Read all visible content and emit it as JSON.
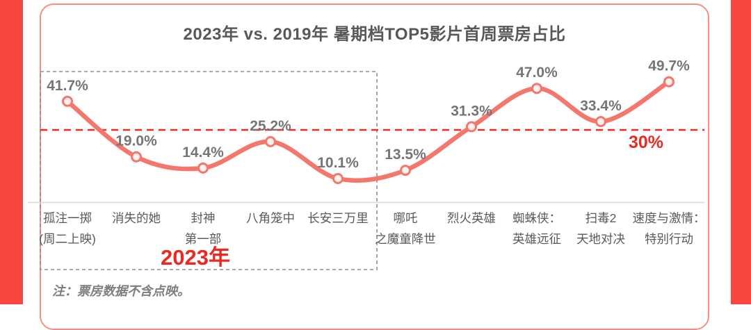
{
  "footnote": {
    "text": "注：票房数据不含点映。"
  },
  "colors": {
    "accent_bar": "#f94540",
    "card_border": "#fa8d82",
    "series_line": "#f4776c",
    "marker_fill": "#fdf1ef",
    "reference_red": "#ee2b26",
    "highlight_red": "#ea2a21",
    "value_label": "#757575",
    "category_label": "#5a5a5a",
    "title_text": "#58585a",
    "footnote_text": "#7d7d7d",
    "box_dash": "#8f8f8f",
    "axis_line": "#d9d9d9"
  },
  "chart_data": {
    "type": "line",
    "title": "2023年 vs. 2019年 暑期档TOP5影片首周票房占比",
    "categories": [
      "孤注一掷(周二上映)",
      "消失的她",
      "封神第一部",
      "八角笼中",
      "长安三万里",
      "哪吒之魔童降世",
      "烈火英雄",
      "蜘蛛侠：英雄远征",
      "扫毒2天地对决",
      "速度与激情：特别行动"
    ],
    "category_lines": [
      [
        "孤注一掷",
        "(周二上映)"
      ],
      [
        "消失的她"
      ],
      [
        "封神",
        "第一部"
      ],
      [
        "八角笼中"
      ],
      [
        "长安三万里"
      ],
      [
        "哪吒",
        "之魔童降世"
      ],
      [
        "烈火英雄"
      ],
      [
        "蜘蛛侠：",
        "英雄远征"
      ],
      [
        "扫毒2",
        "天地对决"
      ],
      [
        "速度与激情：",
        "特别行动"
      ]
    ],
    "values": [
      41.7,
      19.0,
      14.4,
      25.2,
      10.1,
      13.5,
      31.3,
      47.0,
      33.4,
      49.7
    ],
    "labels": [
      "41.7%",
      "19.0%",
      "14.4%",
      "25.2%",
      "10.1%",
      "13.5%",
      "31.3%",
      "47.0%",
      "33.4%",
      "49.7%"
    ],
    "unit": "%",
    "ylim": [
      0,
      55
    ],
    "grid": false,
    "legend": false,
    "reference_line": {
      "value": 30,
      "label": "30%"
    },
    "group_box": {
      "label": "2023年",
      "from_index": 0,
      "to_index": 4
    },
    "groups": [
      {
        "name": "2023年",
        "category_indexes": [
          0,
          1,
          2,
          3,
          4
        ]
      },
      {
        "name": "2019年",
        "category_indexes": [
          5,
          6,
          7,
          8,
          9
        ]
      }
    ]
  }
}
